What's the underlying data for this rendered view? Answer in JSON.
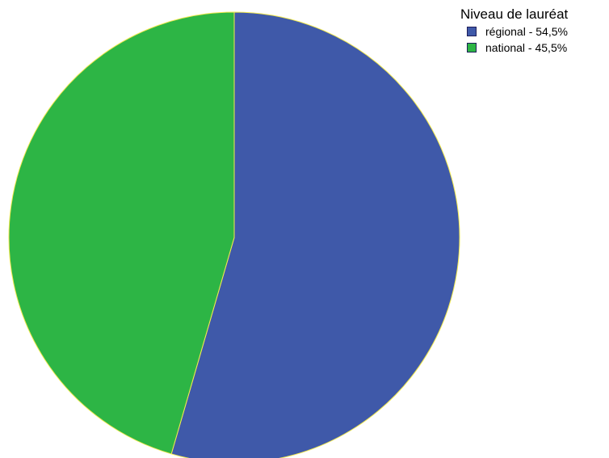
{
  "chart_data": {
    "type": "pie",
    "legend_title": "Niveau de lauréat",
    "legend_position": "top-right",
    "slice_border_color": "#f2e94e",
    "slices": [
      {
        "label": "régional - 54,5%",
        "category": "régional",
        "value": 54.5,
        "color": "#3f59a9"
      },
      {
        "label": "national - 45,5%",
        "category": "national",
        "value": 45.5,
        "color": "#2db545"
      }
    ]
  }
}
